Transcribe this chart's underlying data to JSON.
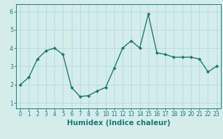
{
  "x": [
    0,
    1,
    2,
    3,
    4,
    5,
    6,
    7,
    8,
    9,
    10,
    11,
    12,
    13,
    14,
    15,
    16,
    17,
    18,
    19,
    20,
    21,
    22,
    23
  ],
  "y": [
    2.0,
    2.4,
    3.4,
    3.85,
    4.0,
    3.65,
    1.85,
    1.35,
    1.4,
    1.65,
    1.85,
    2.9,
    4.0,
    4.4,
    4.0,
    5.85,
    3.75,
    3.65,
    3.5,
    3.5,
    3.5,
    3.4,
    2.7,
    3.0
  ],
  "line_color": "#1a7a6e",
  "marker": "D",
  "marker_size": 2.2,
  "line_width": 1.0,
  "bg_color": "#d4ecec",
  "grid_color": "#b8d8d8",
  "xlabel": "Humidex (Indice chaleur)",
  "xlim": [
    -0.5,
    23.5
  ],
  "ylim": [
    0.7,
    6.4
  ],
  "yticks": [
    1,
    2,
    3,
    4,
    5,
    6
  ],
  "xticks": [
    0,
    1,
    2,
    3,
    4,
    5,
    6,
    7,
    8,
    9,
    10,
    11,
    12,
    13,
    14,
    15,
    16,
    17,
    18,
    19,
    20,
    21,
    22,
    23
  ],
  "tick_fontsize": 5.5,
  "xlabel_fontsize": 7.5
}
